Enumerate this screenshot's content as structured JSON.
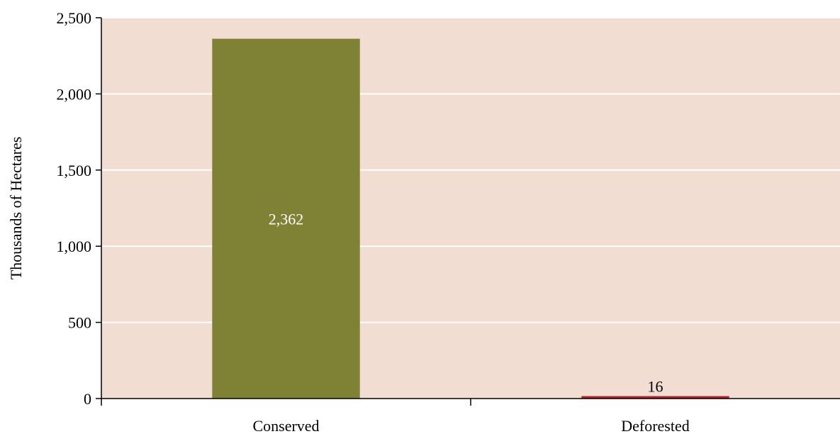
{
  "chart_data": {
    "type": "bar",
    "categories": [
      "Conserved",
      "Deforested"
    ],
    "values": [
      2362,
      16
    ],
    "data_labels": [
      "2,362",
      "16"
    ],
    "ylabel": "Thousands of Hectares",
    "ylim": [
      0,
      2500
    ],
    "yticks": [
      0,
      500,
      1000,
      1500,
      2000,
      2500
    ],
    "ytick_labels": [
      "0",
      "500",
      "1,000",
      "1,500",
      "2,000",
      "2,500"
    ],
    "grid": true,
    "legend": "none",
    "colors": {
      "plot_background": "#f2ddd3",
      "gridline": "#ffffff",
      "axis": "#000000",
      "bars": [
        "#7f8235",
        "#b0242c"
      ],
      "data_label_colors": [
        "#ffffff",
        "#000000"
      ]
    }
  }
}
